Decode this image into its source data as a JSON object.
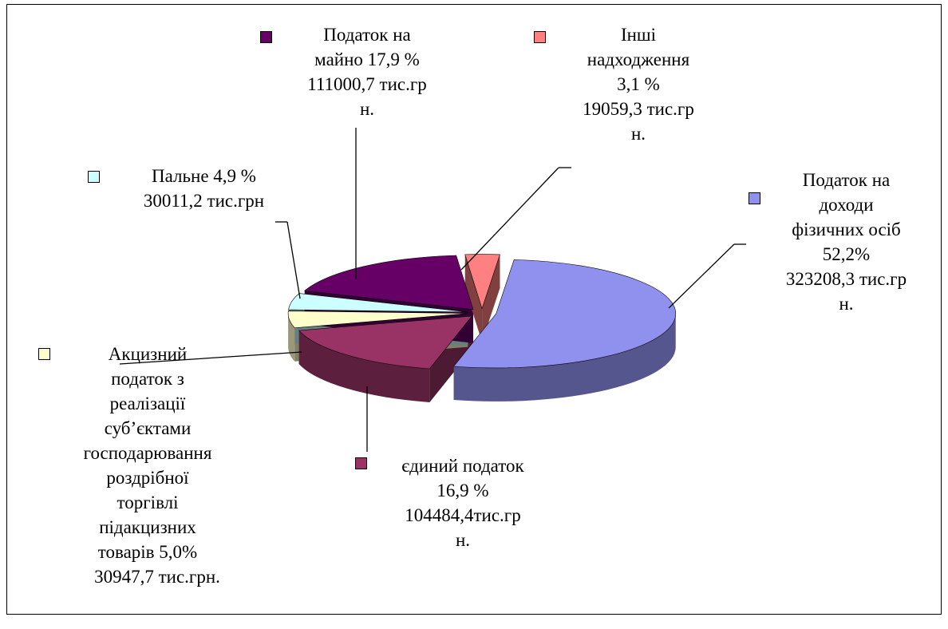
{
  "chart_data": {
    "type": "pie",
    "categories": [
      "Податок на доходи фізичних осіб",
      "єдиний податок",
      "Акцизний податок з реалізації суб’єктами господарювання роздрібної торгівлі підакцизних товарів",
      "Пальне",
      "Податок на майно",
      "Інші надходження"
    ],
    "values": [
      52.2,
      16.9,
      5.0,
      4.9,
      17.9,
      3.1
    ],
    "value_labels": [
      "52,2%",
      "16,9 %",
      "5,0%",
      "4,9 %",
      "17,9 %",
      "3,1 %"
    ],
    "amount_labels": [
      "323208,3 тис.грн.",
      "104484,4тис.грн.",
      "30947,7 тис.грн.",
      "30011,2 тис.грн",
      "111000,7 тис.грн.",
      "19059,3 тис.грн."
    ],
    "colors": [
      "#9090ee",
      "#993366",
      "#ffffcc",
      "#ccffff",
      "#660066",
      "#ff8080"
    ]
  }
}
